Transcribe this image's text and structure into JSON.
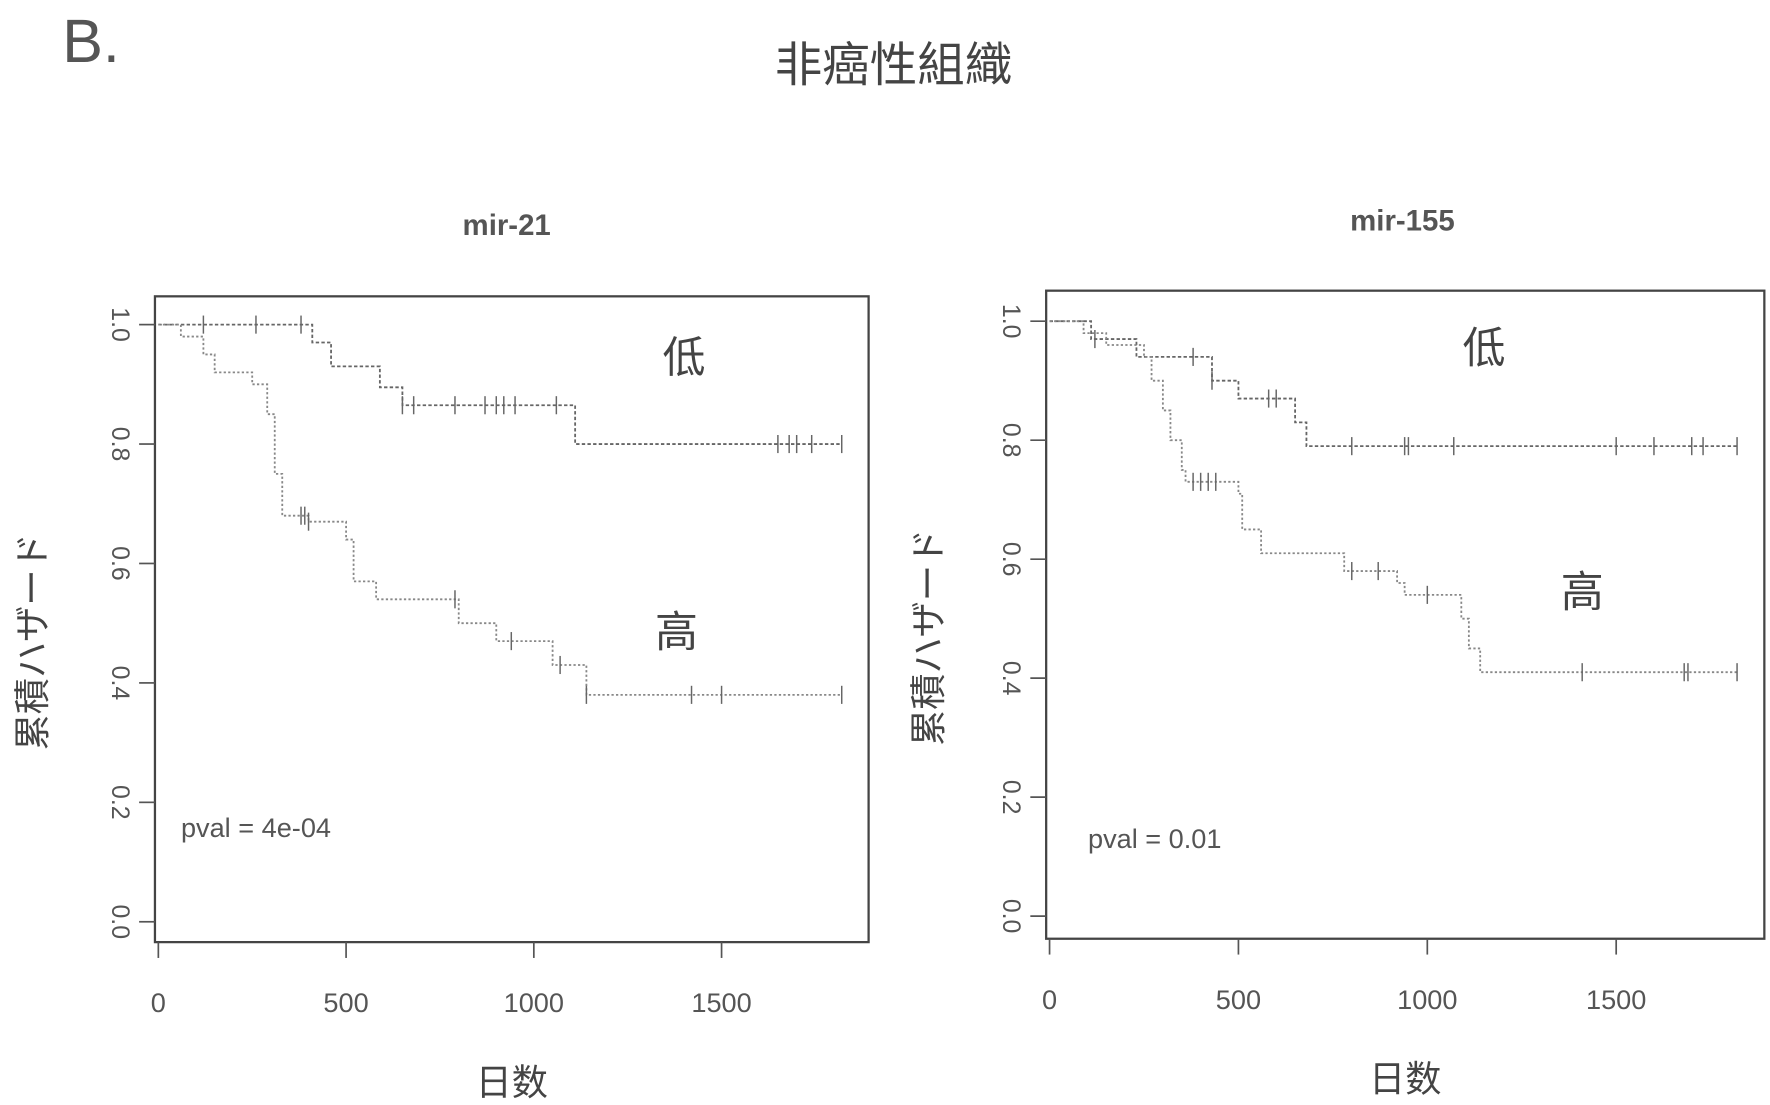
{
  "panel_label": "B.",
  "figure_title": "非癌性組織",
  "chart_data": [
    {
      "type": "line",
      "subtype": "kaplan-meier",
      "title": "mir-21",
      "xlabel": "日数",
      "ylabel": "累積ハザード",
      "xlim": [
        0,
        1820
      ],
      "ylim": [
        0,
        1.0
      ],
      "xticks": [
        "0",
        "500",
        "1000",
        "1500"
      ],
      "yticks": [
        "0.0",
        "0.2",
        "0.4",
        "0.6",
        "0.8",
        "1.0"
      ],
      "annotation": "pval = 4e-04",
      "series": [
        {
          "name": "低",
          "steps": [
            [
              0,
              1.0
            ],
            [
              410,
              0.97
            ],
            [
              460,
              0.93
            ],
            [
              590,
              0.895
            ],
            [
              650,
              0.865
            ],
            [
              1110,
              0.8
            ],
            [
              1820,
              0.8
            ]
          ],
          "censored": [
            120,
            260,
            380,
            650,
            680,
            790,
            870,
            900,
            920,
            950,
            1060,
            1650,
            1680,
            1700,
            1740,
            1820
          ]
        },
        {
          "name": "高",
          "steps": [
            [
              0,
              1.0
            ],
            [
              60,
              0.98
            ],
            [
              120,
              0.95
            ],
            [
              150,
              0.92
            ],
            [
              250,
              0.9
            ],
            [
              290,
              0.85
            ],
            [
              310,
              0.75
            ],
            [
              330,
              0.68
            ],
            [
              400,
              0.67
            ],
            [
              500,
              0.64
            ],
            [
              520,
              0.57
            ],
            [
              580,
              0.54
            ],
            [
              800,
              0.5
            ],
            [
              900,
              0.47
            ],
            [
              1050,
              0.43
            ],
            [
              1140,
              0.38
            ],
            [
              1820,
              0.38
            ]
          ],
          "censored": [
            380,
            390,
            400,
            790,
            940,
            1070,
            1140,
            1420,
            1500,
            1820
          ]
        }
      ]
    },
    {
      "type": "line",
      "subtype": "kaplan-meier",
      "title": "mir-155",
      "xlabel": "日数",
      "ylabel": "累積ハザード",
      "xlim": [
        0,
        1820
      ],
      "ylim": [
        0,
        1.0
      ],
      "xticks": [
        "0",
        "500",
        "1000",
        "1500"
      ],
      "yticks": [
        "0.0",
        "0.2",
        "0.4",
        "0.6",
        "0.8",
        "1.0"
      ],
      "annotation": "pval = 0.01",
      "series": [
        {
          "name": "低",
          "steps": [
            [
              0,
              1.0
            ],
            [
              110,
              0.97
            ],
            [
              230,
              0.94
            ],
            [
              430,
              0.9
            ],
            [
              500,
              0.87
            ],
            [
              650,
              0.83
            ],
            [
              680,
              0.79
            ],
            [
              1820,
              0.79
            ]
          ],
          "censored": [
            120,
            380,
            430,
            580,
            600,
            800,
            940,
            950,
            1070,
            1500,
            1600,
            1700,
            1730,
            1820
          ]
        },
        {
          "name": "高",
          "steps": [
            [
              0,
              1.0
            ],
            [
              90,
              0.98
            ],
            [
              150,
              0.96
            ],
            [
              250,
              0.94
            ],
            [
              270,
              0.9
            ],
            [
              300,
              0.85
            ],
            [
              320,
              0.8
            ],
            [
              350,
              0.75
            ],
            [
              360,
              0.73
            ],
            [
              500,
              0.71
            ],
            [
              510,
              0.65
            ],
            [
              560,
              0.61
            ],
            [
              780,
              0.58
            ],
            [
              920,
              0.56
            ],
            [
              940,
              0.54
            ],
            [
              1090,
              0.5
            ],
            [
              1110,
              0.45
            ],
            [
              1140,
              0.41
            ],
            [
              1820,
              0.41
            ]
          ],
          "censored": [
            380,
            400,
            420,
            440,
            800,
            870,
            1000,
            1410,
            1680,
            1690,
            1820
          ]
        }
      ]
    }
  ]
}
